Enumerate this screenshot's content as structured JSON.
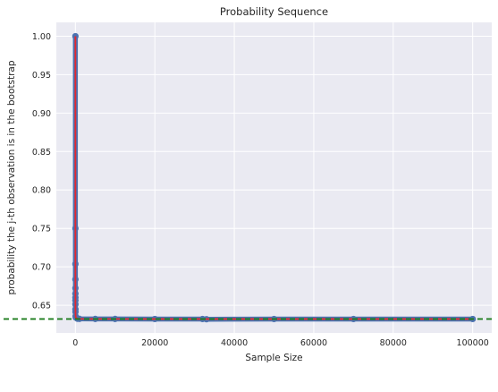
{
  "chart_data": {
    "type": "line",
    "title": "Probability Sequence",
    "xlabel": "Sample Size",
    "ylabel": "probability the j-th observation is in the bootstrap",
    "xlim": [
      -4800,
      104800
    ],
    "ylim": [
      0.614,
      1.018
    ],
    "xticks": [
      0,
      20000,
      40000,
      60000,
      80000,
      100000
    ],
    "xtick_labels": [
      "0",
      "20000",
      "40000",
      "60000",
      "80000",
      "100000"
    ],
    "yticks": [
      0.65,
      0.7,
      0.75,
      0.8,
      0.85,
      0.9,
      0.95,
      1.0
    ],
    "ytick_labels": [
      "0.65",
      "0.70",
      "0.75",
      "0.80",
      "0.85",
      "0.90",
      "0.95",
      "1.00"
    ],
    "grid": true,
    "series": [
      {
        "style": "scatter",
        "color": "#4c72b0",
        "x": [
          1,
          2,
          3,
          4,
          5,
          6,
          7,
          8,
          10,
          15,
          20,
          50,
          100,
          500,
          1000,
          5000,
          10000,
          20000,
          32000,
          33000,
          50000,
          70000,
          100000
        ],
        "y": [
          1.0,
          0.75,
          0.7037,
          0.6836,
          0.6723,
          0.6651,
          0.6601,
          0.6564,
          0.6513,
          0.6447,
          0.6415,
          0.6358,
          0.634,
          0.6325,
          0.6323,
          0.6322,
          0.6322,
          0.6321,
          0.6321,
          0.6318,
          0.6321,
          0.6321,
          0.6321
        ]
      },
      {
        "style": "line",
        "color": "#e8262c",
        "x": [
          1,
          2,
          3,
          4,
          5,
          10,
          20,
          50,
          100,
          500,
          1000,
          5000,
          10000,
          20000,
          50000,
          100000
        ],
        "y": [
          1.0,
          0.75,
          0.7037,
          0.6836,
          0.6723,
          0.6513,
          0.6415,
          0.6358,
          0.634,
          0.6325,
          0.6323,
          0.6322,
          0.6322,
          0.6321,
          0.6321,
          0.6321
        ]
      },
      {
        "style": "hline-dashed",
        "color": "#1e7d1e",
        "y": 0.6321
      }
    ]
  }
}
